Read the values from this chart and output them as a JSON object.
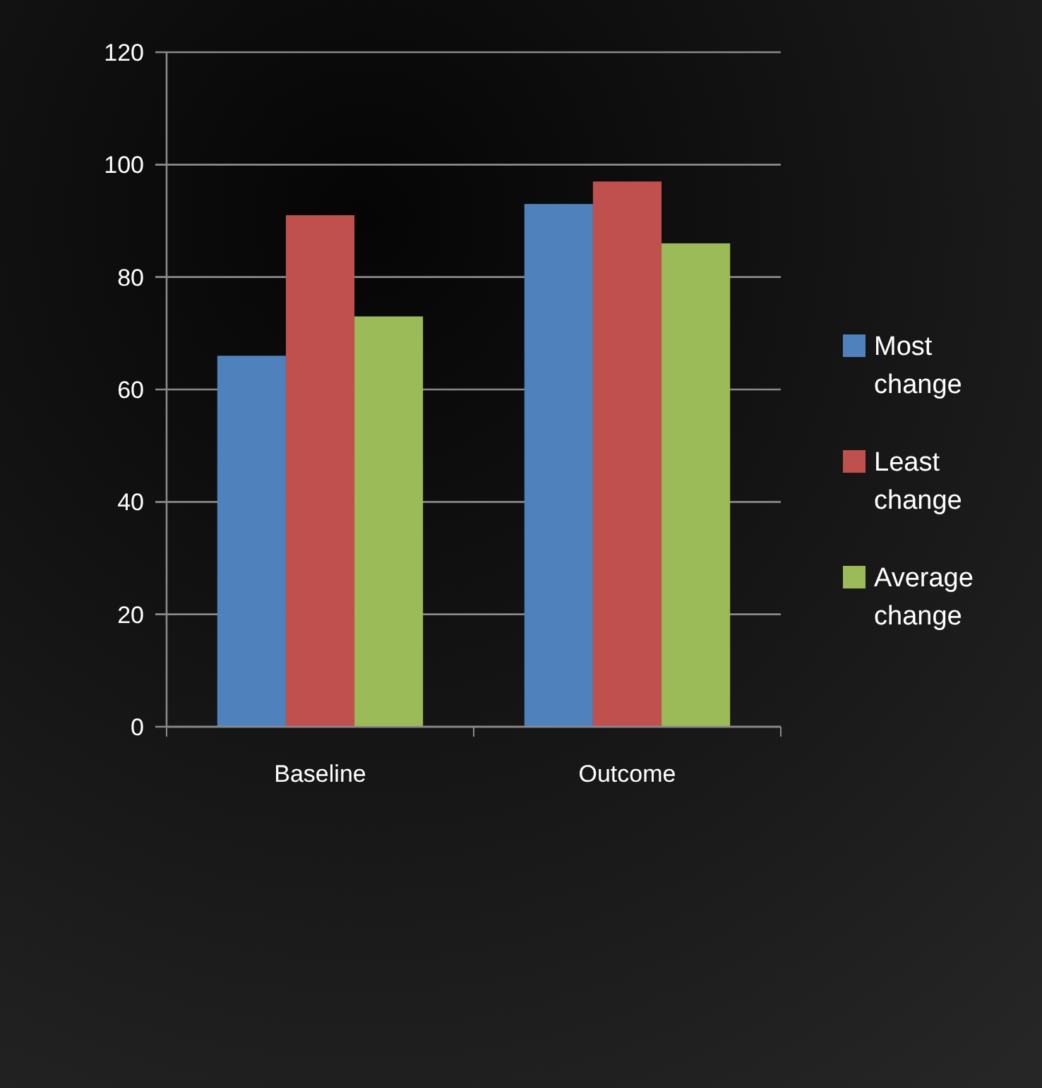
{
  "chart_data": {
    "type": "bar",
    "categories": [
      "Baseline",
      "Outcome"
    ],
    "series": [
      {
        "name": "Most change",
        "color": "#4f81bd",
        "values": [
          66,
          93
        ]
      },
      {
        "name": "Least change",
        "color": "#c0504d",
        "values": [
          91,
          97
        ]
      },
      {
        "name": "Average change",
        "color": "#9bbb59",
        "values": [
          73,
          86
        ]
      }
    ],
    "ylim": [
      0,
      120
    ],
    "yticks": [
      0,
      20,
      40,
      60,
      80,
      100,
      120
    ],
    "grid": "y",
    "legend": "right"
  }
}
